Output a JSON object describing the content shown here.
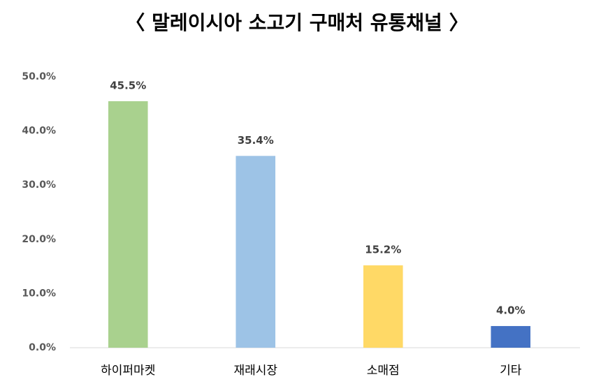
{
  "chart_data": {
    "type": "bar",
    "title": "〈 말레이시아 소고기 구매처 유통채널 〉",
    "categories": [
      "하이퍼마켓",
      "재래시장",
      "소매점",
      "기타"
    ],
    "values": [
      45.5,
      35.4,
      15.2,
      4.0
    ],
    "value_labels": [
      "45.5%",
      "35.4%",
      "15.2%",
      "4.0%"
    ],
    "colors": [
      "#a9d18e",
      "#9dc3e6",
      "#ffd966",
      "#4472c4"
    ],
    "ylim": [
      0,
      50
    ],
    "yticks": [
      {
        "value": 0,
        "label": "0.0%"
      },
      {
        "value": 10,
        "label": "10.0%"
      },
      {
        "value": 20,
        "label": "20.0%"
      },
      {
        "value": 30,
        "label": "30.0%"
      },
      {
        "value": 40,
        "label": "40.0%"
      },
      {
        "value": 50,
        "label": "50.0%"
      }
    ],
    "grid": false
  }
}
